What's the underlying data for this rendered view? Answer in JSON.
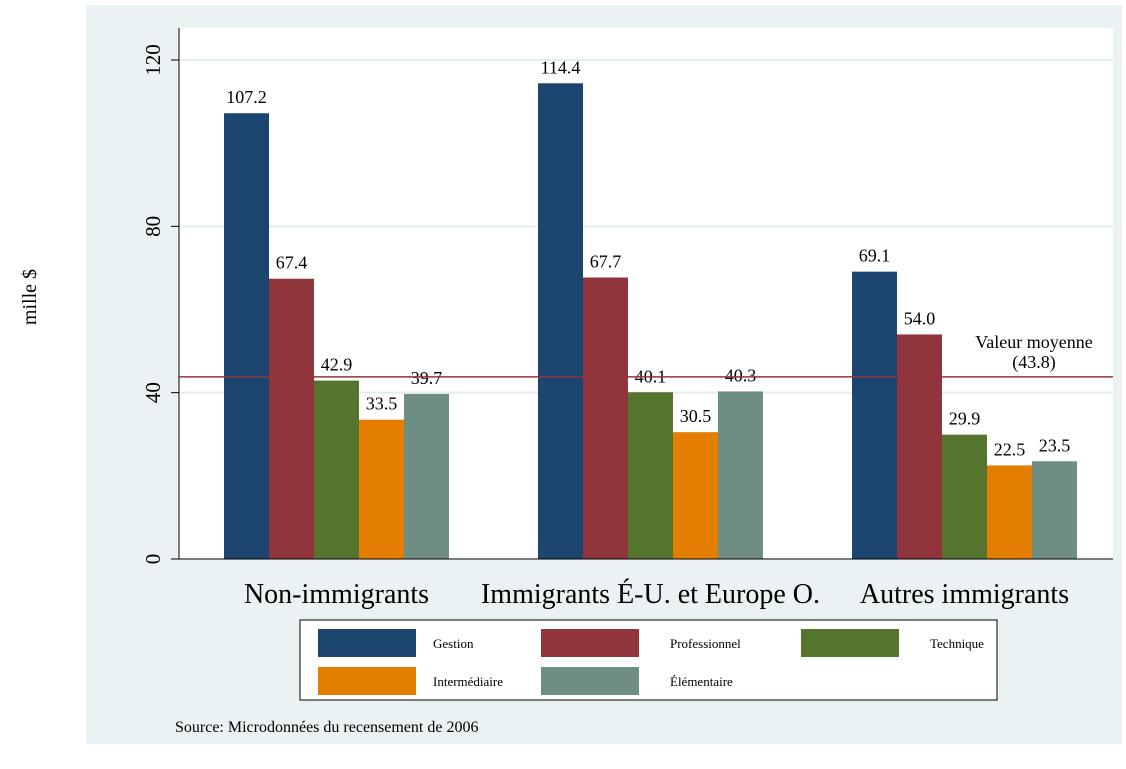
{
  "chart_data": {
    "type": "bar",
    "ylabel": "mille $",
    "ylim": [
      0,
      128
    ],
    "yticks": [
      0,
      40,
      80,
      120
    ],
    "grid": true,
    "categories": [
      "Non-immigrants",
      "Immigrants É-U. et Europe O.",
      "Autres immigrants"
    ],
    "series": [
      {
        "name": "Gestion",
        "color": "#1c4670",
        "values": [
          107.2,
          114.4,
          69.1
        ],
        "labels": [
          "107.2",
          "114.4",
          "69.1"
        ]
      },
      {
        "name": "Professionnel",
        "color": "#90353b",
        "values": [
          67.4,
          67.7,
          54.0
        ],
        "labels": [
          "67.4",
          "67.7",
          "54.0"
        ]
      },
      {
        "name": "Technique",
        "color": "#55752f",
        "values": [
          42.9,
          40.1,
          29.9
        ],
        "labels": [
          "42.9",
          "40.1",
          "29.9"
        ]
      },
      {
        "name": "Intermédiaire",
        "color": "#e37e00",
        "values": [
          33.5,
          30.5,
          22.5
        ],
        "labels": [
          "33.5",
          "30.5",
          "22.5"
        ]
      },
      {
        "name": "Élémentaire",
        "color": "#6e8e84",
        "values": [
          39.7,
          40.3,
          23.5
        ],
        "labels": [
          "39.7",
          "40.3",
          "23.5"
        ]
      }
    ],
    "reference_line": {
      "value": 43.8,
      "color": "#90353b",
      "label_line1": "Valeur moyenne",
      "label_line2": "(43.8)"
    },
    "legend_position": "bottom",
    "note": "Source: Microdonnées du recensement de 2006"
  }
}
